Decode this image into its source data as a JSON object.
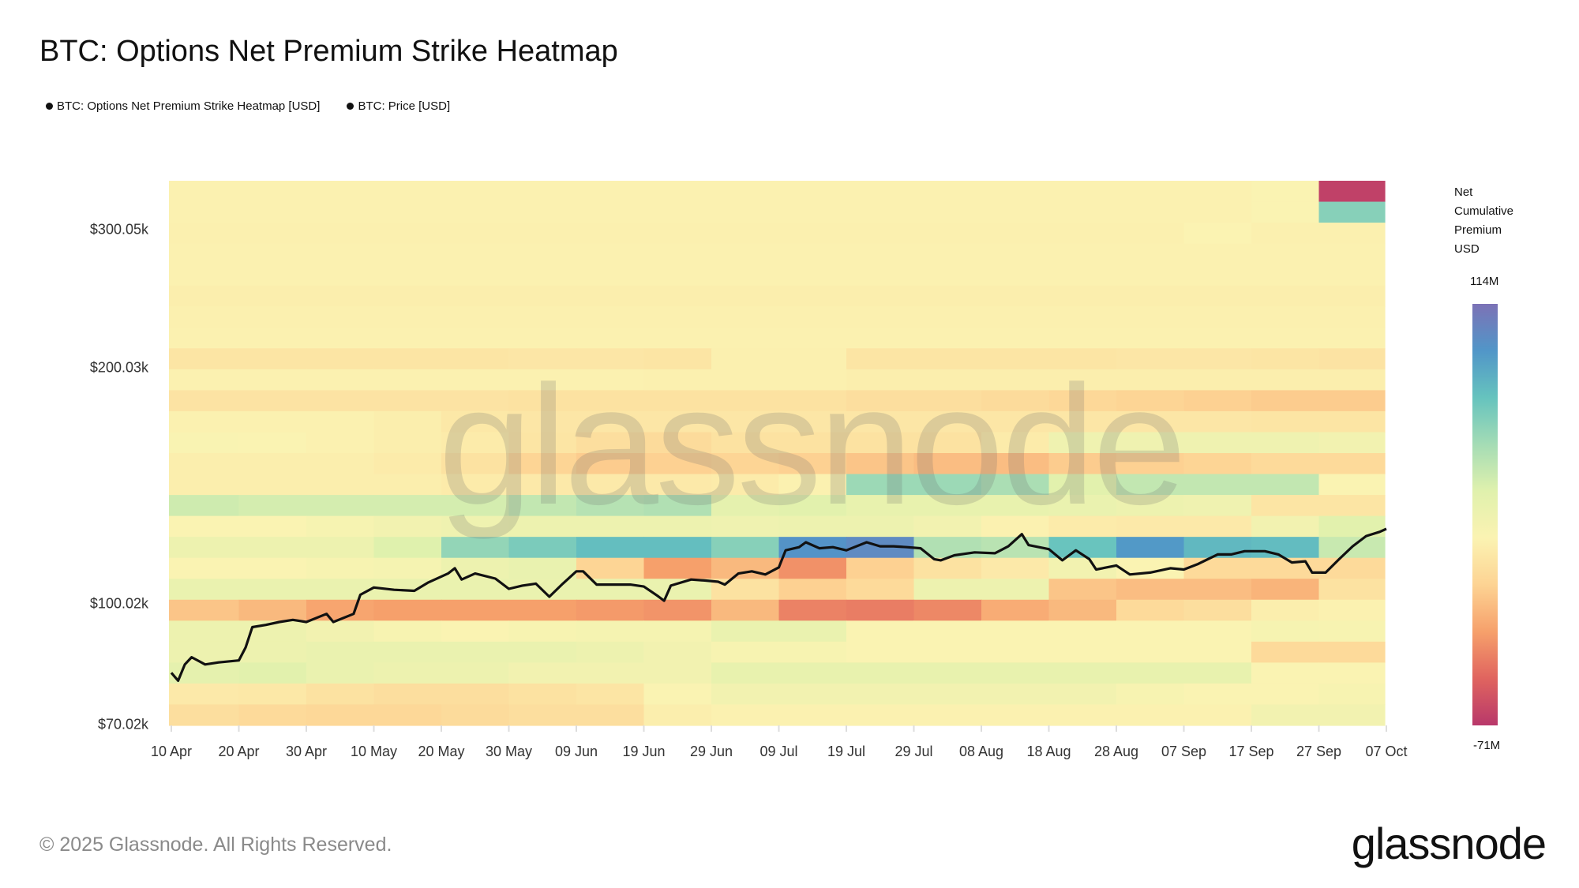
{
  "title": "BTC: Options Net Premium Strike Heatmap",
  "legend": [
    {
      "label": "BTC: Options Net Premium Strike Heatmap [USD]",
      "color": "#111111"
    },
    {
      "label": "BTC: Price [USD]",
      "color": "#111111"
    }
  ],
  "colorbar": {
    "title_lines": [
      "Net",
      "Cumulative",
      "Premium",
      "USD"
    ],
    "max_label": "114M",
    "min_label": "-71M",
    "min": -71,
    "max": 114,
    "stops": [
      "#b8386a",
      "#e0645f",
      "#f6a06b",
      "#fdd393",
      "#fbf3b2",
      "#e0f1ad",
      "#a4dcb5",
      "#66c3be",
      "#5196c8",
      "#7c72b6"
    ]
  },
  "footer": "© 2025 Glassnode. All Rights Reserved.",
  "logo": "glassnode",
  "watermark": "glassnode",
  "chart_data": {
    "type": "heatmap",
    "title": "BTC: Options Net Premium Strike Heatmap",
    "y_scale": "log",
    "ylim": [
      70,
      346
    ],
    "y_unit": "k USD",
    "y_ticks": [
      {
        "value": 300.05,
        "label": "$300.05k"
      },
      {
        "value": 200.03,
        "label": "$200.03k"
      },
      {
        "value": 100.02,
        "label": "$100.02k"
      },
      {
        "value": 70.02,
        "label": "$70.02k"
      }
    ],
    "x_ticks": [
      "10 Apr",
      "20 Apr",
      "30 Apr",
      "10 May",
      "20 May",
      "30 May",
      "09 Jun",
      "19 Jun",
      "29 Jun",
      "09 Jul",
      "19 Jul",
      "29 Jul",
      "08 Aug",
      "18 Aug",
      "28 Aug",
      "07 Sep",
      "17 Sep",
      "27 Sep",
      "07 Oct"
    ],
    "x_tick_dates": [
      "2025-04-10",
      "2025-04-20",
      "2025-04-30",
      "2025-05-10",
      "2025-05-20",
      "2025-05-30",
      "2025-06-09",
      "2025-06-19",
      "2025-06-29",
      "2025-07-09",
      "2025-07-19",
      "2025-07-29",
      "2025-08-08",
      "2025-08-18",
      "2025-08-28",
      "2025-09-07",
      "2025-09-17",
      "2025-09-27",
      "2025-10-07"
    ],
    "xlim": [
      "2025-04-10",
      "2025-10-07"
    ],
    "grid": false,
    "legend_position": "top-left",
    "heatmap": {
      "name": "BTC: Options Net Premium Strike Heatmap [USD]",
      "value_unit": "M USD",
      "column_start_dates": [
        "2025-04-10",
        "2025-04-20",
        "2025-04-30",
        "2025-05-10",
        "2025-05-20",
        "2025-05-30",
        "2025-06-09",
        "2025-06-19",
        "2025-06-29",
        "2025-07-09",
        "2025-07-19",
        "2025-07-29",
        "2025-08-08",
        "2025-08-18",
        "2025-08-28",
        "2025-09-07",
        "2025-09-17",
        "2025-09-27"
      ],
      "rows_top_to_bottom": [
        [
          10,
          10,
          10,
          10,
          10,
          10,
          10,
          10,
          10,
          10,
          10,
          10,
          10,
          10,
          10,
          10,
          12,
          -67
        ],
        [
          10,
          10,
          10,
          10,
          10,
          10,
          10,
          10,
          10,
          10,
          10,
          10,
          10,
          10,
          10,
          10,
          12,
          62
        ],
        [
          9,
          9,
          9,
          9,
          9,
          9,
          9,
          9,
          9,
          9,
          9,
          9,
          9,
          9,
          9,
          11,
          9,
          9
        ],
        [
          10,
          10,
          10,
          10,
          10,
          10,
          10,
          10,
          10,
          10,
          10,
          10,
          10,
          10,
          10,
          10,
          10,
          10
        ],
        [
          10,
          10,
          10,
          10,
          10,
          10,
          10,
          10,
          10,
          10,
          10,
          10,
          10,
          10,
          10,
          10,
          10,
          10
        ],
        [
          8,
          8,
          8,
          8,
          8,
          8,
          8,
          8,
          8,
          8,
          8,
          8,
          8,
          8,
          8,
          8,
          8,
          8
        ],
        [
          9,
          9,
          9,
          9,
          9,
          9,
          9,
          9,
          9,
          9,
          9,
          9,
          9,
          9,
          9,
          9,
          9,
          9
        ],
        [
          10,
          10,
          10,
          10,
          10,
          10,
          10,
          10,
          10,
          10,
          10,
          10,
          10,
          10,
          10,
          10,
          10,
          10
        ],
        [
          2,
          2,
          2,
          2,
          2,
          3,
          3,
          2,
          9,
          9,
          2,
          2,
          2,
          2,
          3,
          3,
          2,
          1
        ],
        [
          10,
          10,
          10,
          10,
          10,
          10,
          10,
          9,
          9,
          9,
          8,
          8,
          8,
          8,
          8,
          8,
          8,
          8
        ],
        [
          1,
          1,
          1,
          1,
          1,
          0,
          0,
          0,
          0,
          0,
          -2,
          -2,
          -4,
          -6,
          -8,
          -10,
          -12,
          -12
        ],
        [
          10,
          10,
          10,
          8,
          4,
          3,
          3,
          3,
          3,
          3,
          3,
          3,
          3,
          3,
          3,
          3,
          2,
          2
        ],
        [
          13,
          12,
          10,
          8,
          6,
          2,
          -2,
          -4,
          0,
          0,
          0,
          0,
          6,
          20,
          20,
          20,
          20,
          18
        ],
        [
          8,
          8,
          8,
          6,
          0,
          -8,
          -12,
          -10,
          -8,
          -10,
          -15,
          -18,
          -18,
          -12,
          -10,
          -8,
          -5,
          -5
        ],
        [
          8,
          8,
          8,
          8,
          6,
          5,
          5,
          5,
          6,
          10,
          55,
          55,
          50,
          30,
          42,
          42,
          42,
          12
        ],
        [
          38,
          36,
          36,
          36,
          36,
          42,
          46,
          48,
          28,
          30,
          26,
          26,
          26,
          24,
          22,
          20,
          2,
          2
        ],
        [
          12,
          12,
          15,
          18,
          20,
          22,
          22,
          22,
          20,
          22,
          22,
          18,
          10,
          6,
          5,
          5,
          18,
          30
        ],
        [
          22,
          22,
          22,
          32,
          58,
          66,
          75,
          75,
          62,
          95,
          100,
          48,
          45,
          72,
          92,
          78,
          76,
          40
        ],
        [
          12,
          12,
          14,
          16,
          22,
          25,
          -8,
          -30,
          -20,
          -35,
          -10,
          0,
          5,
          18,
          12,
          -5,
          -5,
          -5
        ],
        [
          24,
          24,
          24,
          24,
          24,
          24,
          24,
          24,
          0,
          -10,
          -5,
          22,
          22,
          -15,
          -18,
          -18,
          -22,
          0
        ],
        [
          -15,
          -20,
          -28,
          -30,
          -30,
          -30,
          -32,
          -34,
          -20,
          -40,
          -42,
          -38,
          -25,
          -20,
          -5,
          -2,
          8,
          10
        ],
        [
          22,
          22,
          18,
          14,
          12,
          14,
          16,
          16,
          24,
          24,
          12,
          12,
          12,
          12,
          12,
          12,
          15,
          14
        ],
        [
          22,
          22,
          24,
          24,
          24,
          24,
          22,
          18,
          14,
          14,
          12,
          12,
          12,
          12,
          12,
          12,
          -5,
          -5
        ],
        [
          28,
          30,
          24,
          22,
          22,
          18,
          18,
          18,
          26,
          26,
          26,
          26,
          26,
          26,
          26,
          26,
          12,
          12
        ],
        [
          5,
          4,
          0,
          -2,
          -2,
          0,
          2,
          12,
          18,
          18,
          18,
          18,
          18,
          18,
          14,
          12,
          12,
          14
        ],
        [
          -2,
          -5,
          -6,
          -6,
          -4,
          -2,
          -2,
          8,
          10,
          10,
          10,
          10,
          10,
          10,
          10,
          10,
          18,
          18
        ]
      ]
    },
    "price_series": {
      "name": "BTC: Price [USD]",
      "color": "#111111",
      "points": [
        [
          "2025-04-10",
          81.7
        ],
        [
          "2025-04-11",
          79.8
        ],
        [
          "2025-04-12",
          83.7
        ],
        [
          "2025-04-13",
          85.5
        ],
        [
          "2025-04-15",
          83.7
        ],
        [
          "2025-04-17",
          84.2
        ],
        [
          "2025-04-20",
          84.7
        ],
        [
          "2025-04-21",
          88.0
        ],
        [
          "2025-04-22",
          93.4
        ],
        [
          "2025-04-24",
          94.0
        ],
        [
          "2025-04-26",
          94.8
        ],
        [
          "2025-04-28",
          95.4
        ],
        [
          "2025-04-30",
          94.8
        ],
        [
          "2025-05-03",
          97.1
        ],
        [
          "2025-05-04",
          94.8
        ],
        [
          "2025-05-07",
          97.1
        ],
        [
          "2025-05-08",
          102.7
        ],
        [
          "2025-05-10",
          104.9
        ],
        [
          "2025-05-13",
          104.2
        ],
        [
          "2025-05-16",
          103.9
        ],
        [
          "2025-05-18",
          106.4
        ],
        [
          "2025-05-21",
          109.3
        ],
        [
          "2025-05-22",
          111.0
        ],
        [
          "2025-05-23",
          107.4
        ],
        [
          "2025-05-25",
          109.3
        ],
        [
          "2025-05-28",
          107.7
        ],
        [
          "2025-05-30",
          104.5
        ],
        [
          "2025-06-01",
          105.5
        ],
        [
          "2025-06-03",
          106.1
        ],
        [
          "2025-06-05",
          102.1
        ],
        [
          "2025-06-07",
          106.1
        ],
        [
          "2025-06-09",
          110.0
        ],
        [
          "2025-06-10",
          110.0
        ],
        [
          "2025-06-12",
          105.8
        ],
        [
          "2025-06-15",
          105.8
        ],
        [
          "2025-06-17",
          105.8
        ],
        [
          "2025-06-19",
          105.2
        ],
        [
          "2025-06-21",
          102.4
        ],
        [
          "2025-06-22",
          100.9
        ],
        [
          "2025-06-23",
          105.5
        ],
        [
          "2025-06-26",
          107.4
        ],
        [
          "2025-06-28",
          107.1
        ],
        [
          "2025-06-30",
          106.7
        ],
        [
          "2025-07-01",
          105.8
        ],
        [
          "2025-07-03",
          109.3
        ],
        [
          "2025-07-05",
          110.0
        ],
        [
          "2025-07-07",
          109.0
        ],
        [
          "2025-07-09",
          111.3
        ],
        [
          "2025-07-10",
          117.0
        ],
        [
          "2025-07-12",
          118.1
        ],
        [
          "2025-07-13",
          119.8
        ],
        [
          "2025-07-15",
          117.7
        ],
        [
          "2025-07-17",
          118.1
        ],
        [
          "2025-07-19",
          117.0
        ],
        [
          "2025-07-22",
          119.8
        ],
        [
          "2025-07-24",
          118.4
        ],
        [
          "2025-07-26",
          118.4
        ],
        [
          "2025-07-28",
          118.1
        ],
        [
          "2025-07-30",
          117.7
        ],
        [
          "2025-08-01",
          114.0
        ],
        [
          "2025-08-02",
          113.6
        ],
        [
          "2025-08-04",
          115.3
        ],
        [
          "2025-08-07",
          116.3
        ],
        [
          "2025-08-10",
          116.0
        ],
        [
          "2025-08-12",
          118.4
        ],
        [
          "2025-08-14",
          122.7
        ],
        [
          "2025-08-15",
          118.8
        ],
        [
          "2025-08-18",
          117.4
        ],
        [
          "2025-08-20",
          113.6
        ],
        [
          "2025-08-22",
          117.0
        ],
        [
          "2025-08-24",
          114.0
        ],
        [
          "2025-08-25",
          110.6
        ],
        [
          "2025-08-28",
          111.9
        ],
        [
          "2025-08-30",
          109.0
        ],
        [
          "2025-09-02",
          109.6
        ],
        [
          "2025-09-05",
          111.0
        ],
        [
          "2025-09-07",
          110.6
        ],
        [
          "2025-09-09",
          112.3
        ],
        [
          "2025-09-12",
          115.6
        ],
        [
          "2025-09-14",
          115.6
        ],
        [
          "2025-09-16",
          116.7
        ],
        [
          "2025-09-19",
          116.7
        ],
        [
          "2025-09-21",
          115.6
        ],
        [
          "2025-09-23",
          112.9
        ],
        [
          "2025-09-25",
          113.3
        ],
        [
          "2025-09-26",
          109.6
        ],
        [
          "2025-09-28",
          109.6
        ],
        [
          "2025-09-30",
          114.0
        ],
        [
          "2025-10-02",
          118.4
        ],
        [
          "2025-10-04",
          122.0
        ],
        [
          "2025-10-06",
          123.5
        ],
        [
          "2025-10-07",
          124.6
        ]
      ]
    }
  }
}
